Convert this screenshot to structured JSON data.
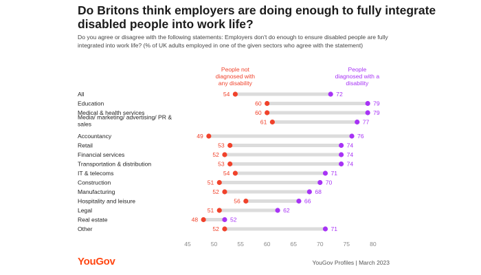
{
  "title": "Do Britons think employers are doing enough to fully integrate disabled people into work life?",
  "subtitle": "Do you agree or disagree with the following statements: Employers don't do enough to ensure disabled people are fully integrated into work life? (% of UK adults employed in one of the given sectors who agree with the statement)",
  "footer": {
    "logo": "YouGov",
    "source": "YouGov Profiles | March 2023"
  },
  "colors": {
    "not_diagnosed": "#f0422b",
    "diagnosed": "#a733f5",
    "connector": "#dcdcdc",
    "axis_text": "#888888"
  },
  "chart_data": {
    "type": "dot-plot",
    "xlim": [
      45,
      80
    ],
    "xticks": [
      45,
      50,
      55,
      60,
      65,
      70,
      75,
      80
    ],
    "categories": [
      "All",
      "Education",
      "Medical & health services",
      "Media/ marketing/ advertising/ PR & sales",
      "Accountancy",
      "Retail",
      "Financial services",
      "Transportation & distribution",
      "IT & telecoms",
      "Construction",
      "Manufacturing",
      "Hospitality and leisure",
      "Legal",
      "Real estate",
      "Other"
    ],
    "category_lines": [
      [
        "All"
      ],
      [
        "Education"
      ],
      [
        "Medical & health services"
      ],
      [
        "Media/ marketing/ advertising/ PR &",
        "sales"
      ],
      [
        "Accountancy"
      ],
      [
        "Retail"
      ],
      [
        "Financial services"
      ],
      [
        "Transportation & distribution"
      ],
      [
        "IT & telecoms"
      ],
      [
        "Construction"
      ],
      [
        "Manufacturing"
      ],
      [
        "Hospitality and leisure"
      ],
      [
        "Legal"
      ],
      [
        "Real estate"
      ],
      [
        "Other"
      ]
    ],
    "series": [
      {
        "name": "People not diagnosed with any disability",
        "name_lines": [
          "People not",
          "diagnosed with",
          "any disability"
        ],
        "values": [
          54,
          60,
          60,
          61,
          49,
          53,
          52,
          53,
          54,
          51,
          52,
          56,
          51,
          48,
          52
        ]
      },
      {
        "name": "People diagnosed with a disability",
        "name_lines": [
          "People",
          "diagnosed with a",
          "disability"
        ],
        "values": [
          72,
          79,
          79,
          77,
          76,
          74,
          74,
          74,
          71,
          70,
          68,
          66,
          62,
          52,
          71
        ]
      }
    ],
    "grid": false,
    "legend": "inline-top"
  }
}
